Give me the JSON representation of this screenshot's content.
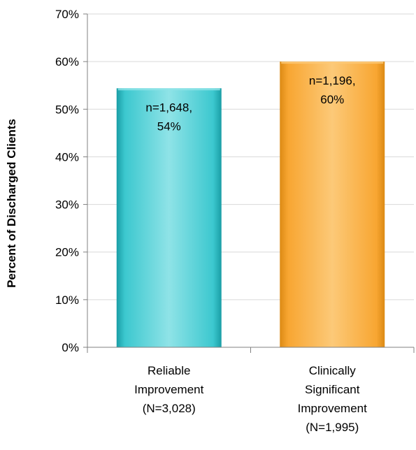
{
  "chart_data": {
    "type": "bar",
    "ylabel": "Percent of Discharged Clients",
    "ylim": [
      0,
      70
    ],
    "y_ticks": [
      "0%",
      "10%",
      "20%",
      "30%",
      "40%",
      "50%",
      "60%",
      "70%"
    ],
    "y_tick_values": [
      0,
      10,
      20,
      30,
      40,
      50,
      60,
      70
    ],
    "grid": true,
    "categories": [
      [
        "Reliable",
        "Improvement",
        "(N=3,028)"
      ],
      [
        "Clinically",
        "Significant",
        "Improvement",
        "(N=1,995)"
      ]
    ],
    "values": [
      54.4,
      60.0
    ],
    "data_labels": [
      [
        "n=1,648,",
        "54%"
      ],
      [
        "n=1,196,",
        "60%"
      ]
    ],
    "colors": [
      {
        "base": "#3cc8cf",
        "light": "#8fe3e7",
        "dark": "#1a9ea6"
      },
      {
        "base": "#f8a632",
        "light": "#fcc978",
        "dark": "#dc8a14"
      }
    ]
  }
}
